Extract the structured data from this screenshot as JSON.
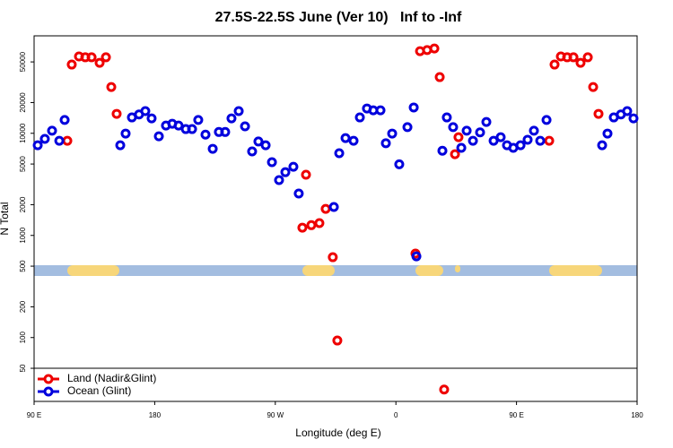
{
  "chart_data": {
    "type": "scatter",
    "title": "27.5S-22.5S June (Ver 10)   Inf to -Inf",
    "xlabel": "Longitude (deg E)",
    "ylabel": "N Total",
    "ylog": true,
    "legend": "bottom-left",
    "xlim": [
      90,
      540
    ],
    "ylim": [
      23.7,
      90000
    ],
    "xticks": [
      {
        "value": 90,
        "label": "90 E"
      },
      180,
      {
        "value": 270,
        "label": "90 W"
      },
      {
        "value": 360,
        "label": "0"
      },
      {
        "value": 450,
        "label": "90 E"
      },
      {
        "value": 540,
        "label": "180"
      }
    ],
    "yticks": [
      50,
      100,
      200,
      500,
      1000,
      2000,
      5000,
      10000,
      20000,
      50000
    ],
    "series": [
      {
        "name": "Land (Nadir&Glint)",
        "color": "#ee0000",
        "x": [
          114.8,
          118.1,
          123.5,
          128.2,
          132.9,
          138.9,
          143.6,
          147.6,
          151.6,
          290.2,
          292.9,
          296.9,
          302.9,
          307.6,
          312.9,
          316.3,
          374.6,
          378.0,
          383.3,
          388.7,
          392.7,
          396.0,
          404.1,
          406.7,
          474.4,
          478.4,
          483.1,
          487.8,
          492.5,
          497.8,
          503.2,
          507.2,
          511.2
        ],
        "values": [
          8450,
          47100,
          56500,
          55500,
          55500,
          49000,
          55500,
          28400,
          15500,
          1190,
          3930,
          1260,
          1320,
          1820,
          612,
          93.5,
          664,
          63700,
          65300,
          67700,
          35500,
          31,
          6240,
          9160,
          8450,
          47100,
          56500,
          55500,
          55500,
          49000,
          55500,
          28400,
          15500
        ]
      },
      {
        "name": "Ocean (Glint)",
        "color": "#0000dd",
        "x": [
          92.7,
          98.0,
          103.4,
          108.8,
          112.8,
          154.3,
          158.3,
          163.0,
          168.3,
          173.0,
          177.7,
          183.1,
          188.4,
          193.1,
          197.8,
          203.2,
          207.9,
          212.5,
          217.9,
          223.3,
          227.9,
          232.6,
          237.3,
          242.7,
          247.4,
          252.7,
          257.4,
          262.8,
          267.5,
          272.8,
          277.5,
          283.5,
          287.5,
          313.7,
          317.7,
          322.4,
          328.4,
          333.1,
          338.4,
          343.1,
          348.5,
          352.5,
          357.2,
          362.5,
          368.6,
          373.3,
          375.3,
          394.7,
          398.0,
          402.7,
          408.8,
          412.8,
          417.5,
          422.8,
          427.5,
          432.9,
          438.2,
          442.9,
          447.6,
          453.0,
          458.3,
          463.0,
          467.7,
          472.4,
          513.9,
          517.9,
          522.6,
          527.9,
          532.6,
          537.3
        ],
        "values": [
          7640,
          8810,
          10600,
          8450,
          13500,
          7640,
          9940,
          14300,
          15300,
          16500,
          14000,
          9350,
          11900,
          12400,
          11900,
          11000,
          11000,
          13500,
          9700,
          7050,
          10300,
          10300,
          14000,
          16500,
          11700,
          6640,
          8310,
          7640,
          5210,
          3480,
          4160,
          4700,
          2570,
          1900,
          6380,
          8980,
          8450,
          14300,
          17500,
          16800,
          16800,
          8000,
          9940,
          4970,
          11500,
          17900,
          624,
          6750,
          14300,
          11500,
          7210,
          10600,
          8450,
          10200,
          12900,
          8450,
          9160,
          7640,
          7210,
          7640,
          8650,
          10600,
          8450,
          13500,
          7640,
          9940,
          14300,
          15300,
          16500,
          14000
        ]
      }
    ]
  }
}
